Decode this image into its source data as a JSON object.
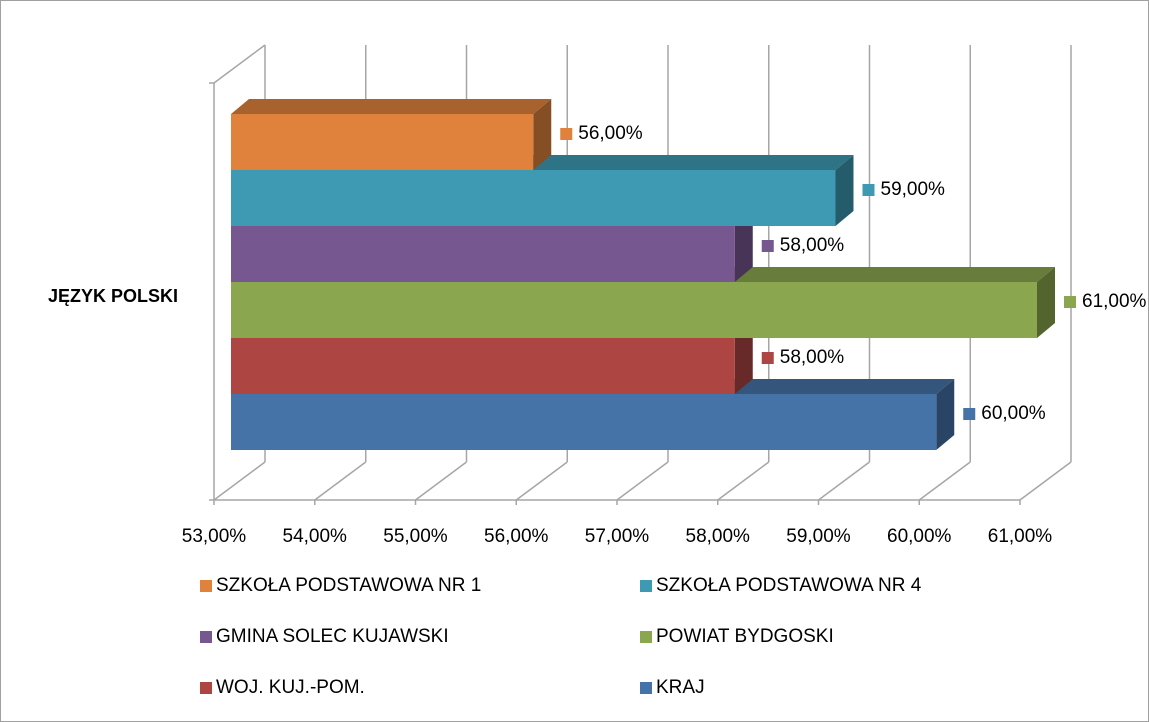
{
  "chart_data": {
    "type": "bar3d",
    "orientation": "horizontal",
    "categories": [
      "JĘZYK POLSKI"
    ],
    "series": [
      {
        "name": "SZKOŁA PODSTAWOWA NR 1",
        "color": "#e0823c",
        "values": [
          56
        ],
        "value_labels": [
          "56,00%"
        ]
      },
      {
        "name": "SZKOŁA PODSTAWOWA NR 4",
        "color": "#3e9ab3",
        "values": [
          59
        ],
        "value_labels": [
          "59,00%"
        ]
      },
      {
        "name": "GMINA SOLEC KUJAWSKI",
        "color": "#77578f",
        "values": [
          58
        ],
        "value_labels": [
          "58,00%"
        ]
      },
      {
        "name": "POWIAT BYDGOSKI",
        "color": "#8aa64e",
        "values": [
          61
        ],
        "value_labels": [
          "61,00%"
        ]
      },
      {
        "name": "WOJ. KUJ.-POM.",
        "color": "#ad4643",
        "values": [
          58
        ],
        "value_labels": [
          "58,00%"
        ]
      },
      {
        "name": "KRAJ",
        "color": "#4572a7",
        "values": [
          60
        ],
        "value_labels": [
          "60,00%"
        ]
      }
    ],
    "xlim": [
      53,
      61
    ],
    "xticks": [
      {
        "value": 53,
        "label": "53,00%"
      },
      {
        "value": 54,
        "label": "54,00%"
      },
      {
        "value": 55,
        "label": "55,00%"
      },
      {
        "value": 56,
        "label": "56,00%"
      },
      {
        "value": 57,
        "label": "57,00%"
      },
      {
        "value": 58,
        "label": "58,00%"
      },
      {
        "value": 59,
        "label": "59,00%"
      },
      {
        "value": 60,
        "label": "60,00%"
      },
      {
        "value": 61,
        "label": "61,00%"
      }
    ],
    "grid": true,
    "legend": "bottom"
  }
}
